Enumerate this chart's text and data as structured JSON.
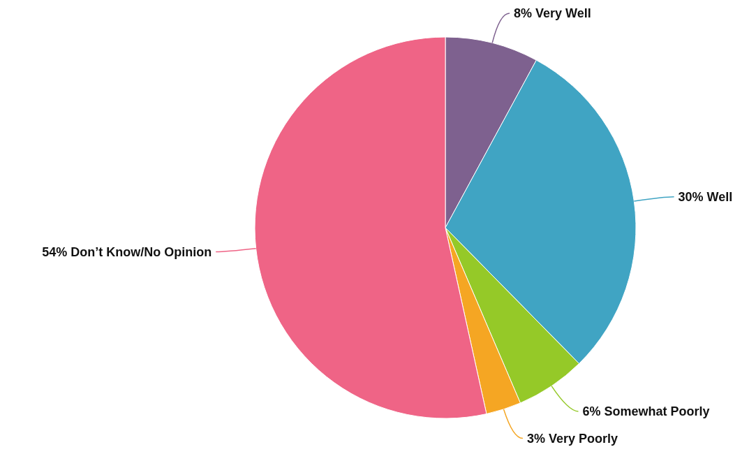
{
  "chart_data": {
    "type": "pie",
    "categories": [
      "Very Well",
      "Well",
      "Somewhat Poorly",
      "Very Poorly",
      "Don’t Know/No Opinion"
    ],
    "values": [
      8,
      30,
      6,
      3,
      54
    ],
    "value_labels": [
      "8%",
      "30%",
      "6%",
      "3%",
      "54%"
    ],
    "colors": [
      "#7e618f",
      "#40a4c3",
      "#95c928",
      "#f5a623",
      "#ef6486"
    ]
  }
}
